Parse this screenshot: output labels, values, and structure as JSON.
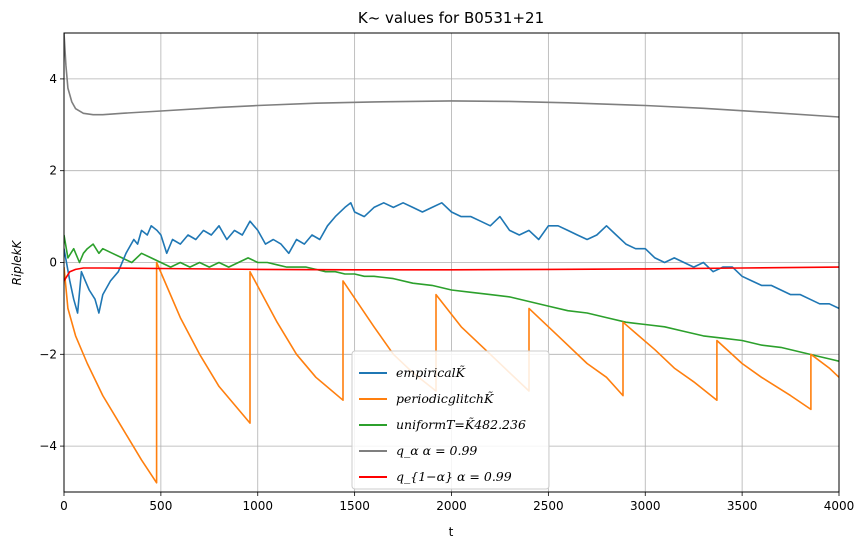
{
  "chart_data": {
    "type": "line",
    "title": "K~ values for B0531+21",
    "xlabel": "t",
    "ylabel": "RiplekK",
    "xlim": [
      0,
      4000
    ],
    "ylim": [
      -5,
      5
    ],
    "xticks": [
      0,
      500,
      1000,
      1500,
      2000,
      2500,
      3000,
      3500,
      4000
    ],
    "yticks": [
      -4,
      -2,
      0,
      2,
      4
    ],
    "xtick_labels": [
      "0",
      "500",
      "1000",
      "1500",
      "2000",
      "2500",
      "3000",
      "3500",
      "4000"
    ],
    "ytick_labels": [
      "−4",
      "−2",
      "0",
      "2",
      "4"
    ],
    "grid": true,
    "legend_position": "lower-center",
    "series": [
      {
        "name": "empiricalK̃",
        "color": "#1f77b4",
        "x": [
          0,
          30,
          50,
          70,
          90,
          110,
          130,
          160,
          180,
          200,
          240,
          280,
          320,
          360,
          380,
          400,
          430,
          450,
          480,
          500,
          530,
          560,
          600,
          640,
          680,
          720,
          760,
          800,
          840,
          880,
          920,
          960,
          1000,
          1040,
          1080,
          1120,
          1160,
          1200,
          1240,
          1280,
          1320,
          1360,
          1400,
          1450,
          1480,
          1500,
          1550,
          1600,
          1650,
          1700,
          1750,
          1800,
          1850,
          1900,
          1950,
          2000,
          2050,
          2100,
          2150,
          2200,
          2250,
          2300,
          2350,
          2400,
          2450,
          2500,
          2550,
          2600,
          2650,
          2700,
          2750,
          2800,
          2850,
          2900,
          2950,
          3000,
          3050,
          3100,
          3150,
          3200,
          3250,
          3300,
          3350,
          3400,
          3450,
          3500,
          3550,
          3600,
          3650,
          3700,
          3750,
          3800,
          3850,
          3900,
          3950,
          4000
        ],
        "y": [
          0.3,
          -0.4,
          -0.8,
          -1.1,
          -0.2,
          -0.4,
          -0.6,
          -0.8,
          -1.1,
          -0.7,
          -0.4,
          -0.2,
          0.2,
          0.5,
          0.4,
          0.7,
          0.6,
          0.8,
          0.7,
          0.6,
          0.2,
          0.5,
          0.4,
          0.6,
          0.5,
          0.7,
          0.6,
          0.8,
          0.5,
          0.7,
          0.6,
          0.9,
          0.7,
          0.4,
          0.5,
          0.4,
          0.2,
          0.5,
          0.4,
          0.6,
          0.5,
          0.8,
          1.0,
          1.2,
          1.3,
          1.1,
          1.0,
          1.2,
          1.3,
          1.2,
          1.3,
          1.2,
          1.1,
          1.2,
          1.3,
          1.1,
          1.0,
          1.0,
          0.9,
          0.8,
          1.0,
          0.7,
          0.6,
          0.7,
          0.5,
          0.8,
          0.8,
          0.7,
          0.6,
          0.5,
          0.6,
          0.8,
          0.6,
          0.4,
          0.3,
          0.3,
          0.1,
          0.0,
          0.1,
          0.0,
          -0.1,
          0.0,
          -0.2,
          -0.1,
          -0.1,
          -0.3,
          -0.4,
          -0.5,
          -0.5,
          -0.6,
          -0.7,
          -0.7,
          -0.8,
          -0.9,
          -0.9,
          -1.0
        ]
      },
      {
        "name": "periodicglitchK̃",
        "color": "#ff7f0e",
        "sawtooth": true,
        "x": [
          0,
          20,
          60,
          120,
          200,
          300,
          400,
          478,
          478,
          600,
          700,
          800,
          900,
          960,
          960,
          1100,
          1200,
          1300,
          1440,
          1440,
          1600,
          1700,
          1800,
          1920,
          1920,
          2050,
          2200,
          2300,
          2400,
          2400,
          2550,
          2700,
          2800,
          2885,
          2885,
          3050,
          3150,
          3250,
          3370,
          3370,
          3500,
          3600,
          3750,
          3855,
          3855,
          3950,
          4000
        ],
        "y": [
          -0.1,
          -1.0,
          -1.6,
          -2.2,
          -2.9,
          -3.6,
          -4.3,
          -4.8,
          0.0,
          -1.2,
          -2.0,
          -2.7,
          -3.2,
          -3.5,
          -0.2,
          -1.3,
          -2.0,
          -2.5,
          -3.0,
          -0.4,
          -1.4,
          -2.0,
          -2.4,
          -2.8,
          -0.7,
          -1.4,
          -2.0,
          -2.4,
          -2.8,
          -1.0,
          -1.6,
          -2.2,
          -2.5,
          -2.9,
          -1.3,
          -1.9,
          -2.3,
          -2.6,
          -3.0,
          -1.7,
          -2.2,
          -2.5,
          -2.9,
          -3.2,
          -2.0,
          -2.3,
          -2.5
        ]
      },
      {
        "name": "uniformT=K̃482.236",
        "color": "#2ca02c",
        "x": [
          0,
          20,
          50,
          80,
          100,
          120,
          150,
          180,
          200,
          250,
          300,
          350,
          400,
          450,
          500,
          550,
          600,
          650,
          700,
          750,
          800,
          850,
          900,
          950,
          1000,
          1050,
          1100,
          1150,
          1200,
          1250,
          1300,
          1350,
          1400,
          1450,
          1500,
          1550,
          1600,
          1700,
          1800,
          1900,
          2000,
          2100,
          2200,
          2300,
          2400,
          2500,
          2600,
          2700,
          2800,
          2900,
          3000,
          3100,
          3200,
          3300,
          3400,
          3500,
          3600,
          3700,
          3800,
          3900,
          3950,
          4000
        ],
        "y": [
          0.6,
          0.1,
          0.3,
          0.0,
          0.2,
          0.3,
          0.4,
          0.2,
          0.3,
          0.2,
          0.1,
          0.0,
          0.2,
          0.1,
          0.0,
          -0.1,
          0.0,
          -0.1,
          0.0,
          -0.1,
          0.0,
          -0.1,
          0.0,
          0.1,
          0.0,
          0.0,
          -0.05,
          -0.1,
          -0.1,
          -0.1,
          -0.15,
          -0.2,
          -0.2,
          -0.25,
          -0.25,
          -0.3,
          -0.3,
          -0.35,
          -0.45,
          -0.5,
          -0.6,
          -0.65,
          -0.7,
          -0.75,
          -0.85,
          -0.95,
          -1.05,
          -1.1,
          -1.2,
          -1.3,
          -1.35,
          -1.4,
          -1.5,
          -1.6,
          -1.65,
          -1.7,
          -1.8,
          -1.85,
          -1.95,
          -2.05,
          -2.1,
          -2.15
        ]
      },
      {
        "name": "q_α α = 0.99",
        "color": "#7f7f7f",
        "x": [
          0,
          10,
          20,
          40,
          60,
          100,
          150,
          200,
          300,
          500,
          800,
          1000,
          1300,
          1600,
          2000,
          2300,
          2600,
          3000,
          3300,
          3600,
          4000
        ],
        "y": [
          5.0,
          4.3,
          3.8,
          3.5,
          3.35,
          3.25,
          3.22,
          3.22,
          3.25,
          3.3,
          3.38,
          3.42,
          3.47,
          3.5,
          3.52,
          3.51,
          3.48,
          3.42,
          3.36,
          3.28,
          3.17
        ]
      },
      {
        "name": "q_{1−α} α = 0.99",
        "color": "#ff0000",
        "x": [
          0,
          15,
          30,
          60,
          100,
          200,
          500,
          1000,
          1500,
          2000,
          2500,
          3000,
          3500,
          4000
        ],
        "y": [
          -0.4,
          -0.3,
          -0.2,
          -0.15,
          -0.12,
          -0.12,
          -0.13,
          -0.15,
          -0.16,
          -0.16,
          -0.15,
          -0.14,
          -0.12,
          -0.1
        ]
      }
    ],
    "legend": [
      {
        "label": "empiricalK̃",
        "color": "#1f77b4"
      },
      {
        "label": "periodicglitchK̃",
        "color": "#ff7f0e"
      },
      {
        "label": "uniformT=K̃482.236",
        "color": "#2ca02c"
      },
      {
        "label": "q_α α = 0.99",
        "color": "#7f7f7f"
      },
      {
        "label": "q_{1−α} α = 0.99",
        "color": "#ff0000"
      }
    ]
  }
}
